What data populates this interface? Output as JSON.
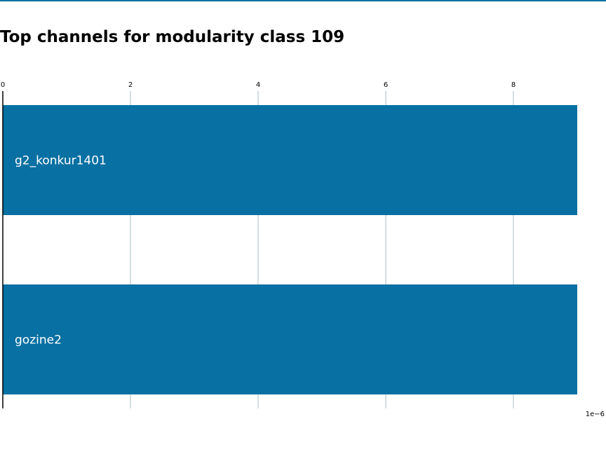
{
  "title": "Top channels for modularity class 109",
  "colors": {
    "bar": "#0870a2",
    "accent_rule": "#0870a2",
    "grid": "#a9bcc8",
    "axis": "#000000",
    "bar_label": "#ffffff"
  },
  "chart_data": {
    "type": "bar",
    "orientation": "horizontal",
    "title": "Top channels for modularity class 109",
    "categories": [
      "g2_konkur1401",
      "gozine2"
    ],
    "values": [
      9e-06,
      9e-06
    ],
    "xlabel": "",
    "ylabel": "",
    "x_scale_label": "1e−6",
    "x_ticks": [
      0,
      2,
      4,
      6,
      8
    ],
    "x_tick_labels": [
      "0",
      "2",
      "4",
      "6",
      "8"
    ],
    "xlim": [
      0,
      9.5e-06
    ],
    "grid": true,
    "tick_position": "top"
  }
}
